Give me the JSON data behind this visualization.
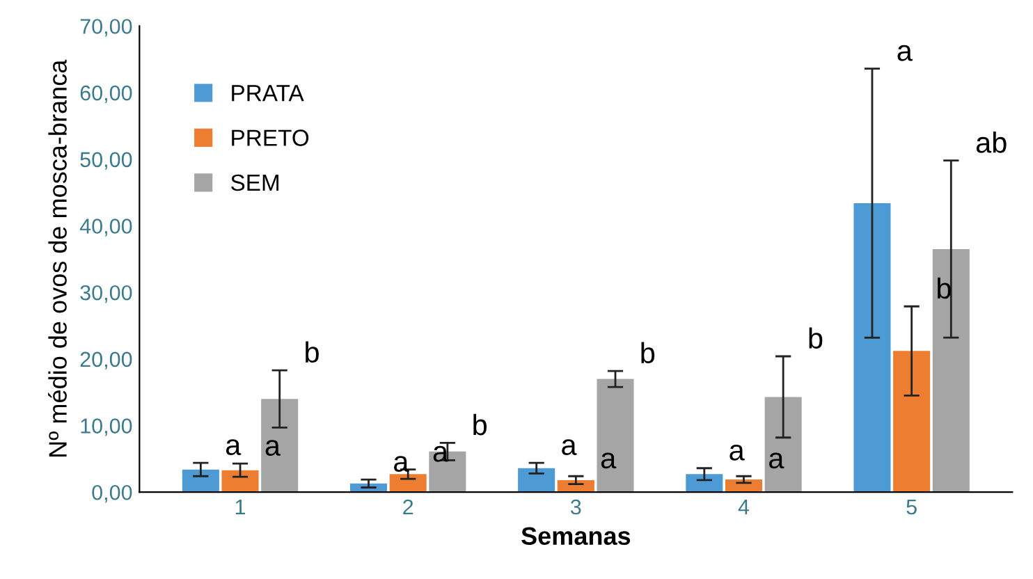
{
  "chart_data": {
    "type": "bar",
    "xlabel": "Semanas",
    "ylabel": "Nº médio de ovos de mosca-branca",
    "categories": [
      "1",
      "2",
      "3",
      "4",
      "5"
    ],
    "series": [
      {
        "name": "PRATA",
        "color": "#4e9ad4",
        "values": [
          3.4,
          1.3,
          3.6,
          2.7,
          43.4
        ],
        "errors": [
          1.0,
          0.6,
          0.8,
          0.9,
          20.2
        ]
      },
      {
        "name": "PRETO",
        "color": "#ed7d31",
        "values": [
          3.3,
          2.7,
          1.8,
          1.9,
          21.2
        ],
        "errors": [
          1.0,
          0.7,
          0.6,
          0.5,
          6.7
        ]
      },
      {
        "name": "SEM",
        "color": "#a5a5a5",
        "values": [
          14.0,
          6.1,
          17.0,
          14.3,
          36.5
        ],
        "errors": [
          4.3,
          1.3,
          1.2,
          6.1,
          13.3
        ]
      }
    ],
    "ylim": [
      0,
      70
    ],
    "yticks": [
      {
        "value": 0,
        "label": "0,00"
      },
      {
        "value": 10,
        "label": "10,00"
      },
      {
        "value": 20,
        "label": "20,00"
      },
      {
        "value": 30,
        "label": "30,00"
      },
      {
        "value": 40,
        "label": "40,00"
      },
      {
        "value": 50,
        "label": "50,00"
      },
      {
        "value": 60,
        "label": "60,00"
      },
      {
        "value": 70,
        "label": "70,00"
      }
    ],
    "grid": false,
    "legend": "top left",
    "annotations": [
      "a",
      "a",
      "b",
      "a",
      "a",
      "b",
      "a",
      "a",
      "b",
      "a",
      "a",
      "b",
      "a",
      "b",
      "ab"
    ]
  }
}
